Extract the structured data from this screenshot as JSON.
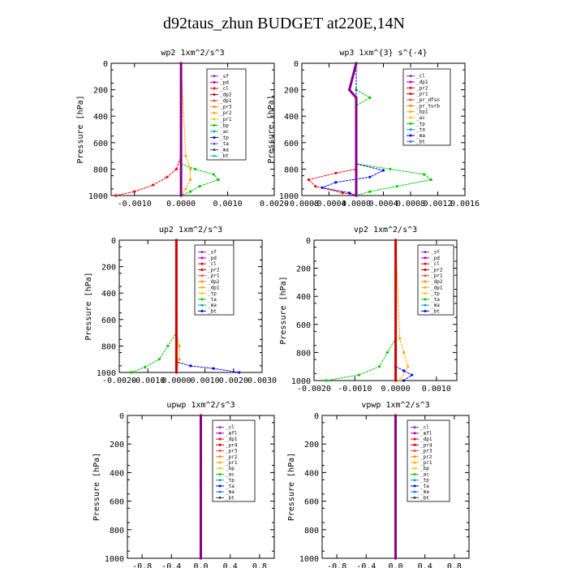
{
  "title": "d92taus_zhun  BUDGET at220E,14N",
  "chart_data": [
    {
      "type": "line",
      "title": "wp2  1xm^2/s^3",
      "ylabel": "Pressure [hPa]",
      "xlim": [
        -0.0015,
        0.002
      ],
      "ylim": [
        1000,
        0
      ],
      "y_ticks": [
        "0",
        "200",
        "400",
        "600",
        "800",
        "1000"
      ],
      "x_ticks": [
        "-0.0010",
        "0.0000",
        "0.0010",
        "0.0020"
      ],
      "x_tick_values": [
        -0.001,
        0,
        0.001,
        0.002
      ],
      "legend": [
        "_sf",
        "_pd",
        "_cl",
        "_dp2",
        "_dp1",
        "_pr3",
        "_pr2",
        "_pr1",
        "_bp",
        "_ac",
        "_tp",
        "_ta",
        "_ma",
        "_bt"
      ],
      "series": [
        {
          "color": "#ff0000",
          "x": [
            0,
            0,
            -0.0001,
            -0.0003,
            -0.0006,
            -0.001,
            -0.0014
          ],
          "y": [
            0,
            700,
            800,
            860,
            920,
            970,
            1000
          ]
        },
        {
          "color": "#ffa500",
          "x": [
            0,
            0.0001,
            0.0002,
            0.0002,
            0.0001,
            0
          ],
          "y": [
            0,
            700,
            800,
            880,
            950,
            1000
          ]
        },
        {
          "color": "#00cc00",
          "x": [
            0,
            0,
            0.0003,
            0.0007,
            0.0008,
            0.0004,
            0.0002,
            0
          ],
          "y": [
            0,
            760,
            800,
            840,
            880,
            930,
            970,
            1000
          ]
        },
        {
          "color": "#880088",
          "x": [
            0,
            0,
            0,
            0
          ],
          "y": [
            0,
            400,
            800,
            1000
          ]
        }
      ]
    },
    {
      "type": "line",
      "title": "wp3  1xm^{3} s^{-4}",
      "ylabel": "Pressure [hPa]",
      "xlim": [
        -0.0008,
        0.0016
      ],
      "ylim": [
        1000,
        0
      ],
      "y_ticks": [
        "0",
        "200",
        "400",
        "600",
        "800",
        "1000"
      ],
      "x_ticks": [
        "-0.0008",
        "-0.0004",
        "0.0000",
        "0.0004",
        "0.0008",
        "0.0012",
        "0.0016"
      ],
      "x_tick_values": [
        -0.0008,
        -0.0004,
        0,
        0.0004,
        0.0008,
        0.0012,
        0.0016
      ],
      "legend": [
        "_cl",
        "_dp1",
        "_pr2",
        "_pr1",
        "_pr_dfsn",
        "_pr_turb",
        "_bp1",
        "_ac",
        "_tp",
        "_ta",
        "_ma",
        "_bt"
      ],
      "series": [
        {
          "color": "#ff0000",
          "x": [
            0,
            0,
            -0.0003,
            -0.0007,
            -0.0006,
            -0.0002,
            0
          ],
          "y": [
            0,
            800,
            830,
            880,
            930,
            980,
            1000
          ]
        },
        {
          "color": "#00cc00",
          "x": [
            0,
            0,
            0.0002,
            0,
            0,
            0.0005,
            0.001,
            0.0011,
            0.0006,
            0.0002,
            0
          ],
          "y": [
            0,
            200,
            260,
            320,
            760,
            800,
            840,
            880,
            930,
            970,
            1000
          ]
        },
        {
          "color": "#0000ff",
          "x": [
            0,
            0,
            0.0004,
            0.0002,
            -0.0003,
            -0.0005,
            -0.0001,
            0
          ],
          "y": [
            0,
            760,
            810,
            860,
            900,
            940,
            980,
            1000
          ]
        },
        {
          "color": "#880088",
          "x": [
            0,
            -0.0001,
            0,
            0,
            0
          ],
          "y": [
            0,
            200,
            260,
            800,
            1000
          ]
        }
      ]
    },
    {
      "type": "line",
      "title": "up2  1xm^2/s^3",
      "ylabel": "Pressure [hPa]",
      "xlim": [
        -0.002,
        0.003
      ],
      "ylim": [
        1000,
        0
      ],
      "y_ticks": [
        "0",
        "200",
        "400",
        "600",
        "800",
        "1000"
      ],
      "x_ticks": [
        "-0.0020",
        "-0.0010",
        "0.0000",
        "0.0010",
        "0.0020",
        "0.0030"
      ],
      "x_tick_values": [
        -0.002,
        -0.001,
        0,
        0.001,
        0.002,
        0.003
      ],
      "legend": [
        "_sf",
        "_pd",
        "_cl",
        "_pr2",
        "_pr1",
        "_dp2",
        "_dp1",
        "_tp",
        "_ta",
        "_ma",
        "_bt"
      ],
      "series": [
        {
          "color": "#00cc00",
          "x": [
            0,
            0,
            -0.0003,
            -0.0006,
            -0.0011,
            -0.0016
          ],
          "y": [
            0,
            700,
            800,
            900,
            960,
            1000
          ]
        },
        {
          "color": "#ffa500",
          "x": [
            0,
            0,
            0.0001,
            0.0001,
            0
          ],
          "y": [
            0,
            700,
            800,
            900,
            1000
          ]
        },
        {
          "color": "#0000ff",
          "x": [
            0,
            0,
            0.0005,
            0.0013,
            0.0022
          ],
          "y": [
            0,
            920,
            950,
            970,
            1000
          ]
        },
        {
          "color": "#cc0000",
          "x": [
            0,
            0,
            0
          ],
          "y": [
            0,
            500,
            1000
          ]
        }
      ]
    },
    {
      "type": "line",
      "title": "vp2  1xm^2/s^3",
      "ylabel": "Pressure [hPa]",
      "xlim": [
        -0.002,
        0.0015
      ],
      "ylim": [
        1000,
        0
      ],
      "y_ticks": [
        "0",
        "200",
        "400",
        "600",
        "800",
        "1000"
      ],
      "x_ticks": [
        "-0.0020",
        "-0.0010",
        "0.0000",
        "0.0010"
      ],
      "x_tick_values": [
        -0.002,
        -0.001,
        0,
        0.001
      ],
      "legend": [
        "_sf",
        "_pd",
        "_cl",
        "_pr2",
        "_pr1",
        "_dp2",
        "_dp1",
        "_tp",
        "_ta",
        "_ma",
        "_bt"
      ],
      "series": [
        {
          "color": "#00cc00",
          "x": [
            0,
            0,
            -0.0002,
            -0.0004,
            -0.0009,
            -0.0017
          ],
          "y": [
            0,
            700,
            800,
            900,
            960,
            1000
          ]
        },
        {
          "color": "#ffa500",
          "x": [
            0,
            0.0001,
            0.0002,
            0.0003,
            0.0001
          ],
          "y": [
            0,
            700,
            800,
            900,
            1000
          ]
        },
        {
          "color": "#0000ff",
          "x": [
            0,
            0,
            0.0002,
            0.0004,
            0.0002
          ],
          "y": [
            0,
            900,
            930,
            960,
            1000
          ]
        },
        {
          "color": "#cc0000",
          "x": [
            0,
            0,
            0
          ],
          "y": [
            0,
            500,
            1000
          ]
        }
      ]
    },
    {
      "type": "line",
      "title": "upwp  1xm^2/s^3",
      "ylabel": "Pressure [hPa]",
      "xlim": [
        -1.0,
        1.0
      ],
      "ylim": [
        1000,
        0
      ],
      "y_ticks": [
        "0",
        "200",
        "400",
        "600",
        "800",
        "1000"
      ],
      "x_ticks": [
        "-0.8",
        "-0.4",
        "0.0",
        "0.4",
        "0.8"
      ],
      "x_tick_values": [
        -0.8,
        -0.4,
        0,
        0.4,
        0.8
      ],
      "legend": [
        "_cl",
        "_mfl",
        "_dp1",
        "_pr4",
        "_pr3",
        "_pr2",
        "_pr1",
        "_bp",
        "_ac",
        "_tp",
        "_ta",
        "_ma",
        "_bt"
      ],
      "series": [
        {
          "color": "#cc0000",
          "x": [
            0,
            0,
            0
          ],
          "y": [
            0,
            500,
            1000
          ]
        },
        {
          "color": "#880088",
          "x": [
            0,
            0
          ],
          "y": [
            0,
            1000
          ]
        }
      ]
    },
    {
      "type": "line",
      "title": "vpwp  1xm^2/s^3",
      "ylabel": "Pressure [hPa]",
      "xlim": [
        -1.0,
        1.0
      ],
      "ylim": [
        1000,
        0
      ],
      "y_ticks": [
        "0",
        "200",
        "400",
        "600",
        "800",
        "1000"
      ],
      "x_ticks": [
        "-0.8",
        "-0.4",
        "0.0",
        "0.4",
        "0.8"
      ],
      "x_tick_values": [
        -0.8,
        -0.4,
        0,
        0.4,
        0.8
      ],
      "legend": [
        "_cl",
        "_mfl",
        "_dp1",
        "_pr4",
        "_pr3",
        "_pr2",
        "_pr1",
        "_bp",
        "_ac",
        "_tp",
        "_ta",
        "_ma",
        "_bt"
      ],
      "series": [
        {
          "color": "#cc0000",
          "x": [
            0,
            0,
            0
          ],
          "y": [
            0,
            500,
            1000
          ]
        },
        {
          "color": "#880088",
          "x": [
            0,
            0
          ],
          "y": [
            0,
            1000
          ]
        }
      ]
    }
  ],
  "legend_colors": [
    "#8a2be2",
    "#aa00aa",
    "#ff0000",
    "#cc0000",
    "#ff4444",
    "#ff8800",
    "#ffaa00",
    "#ffcc00",
    "#00cc00",
    "#00aaaa",
    "#0000ff",
    "#3366ff",
    "#444444",
    "#00cccc"
  ]
}
